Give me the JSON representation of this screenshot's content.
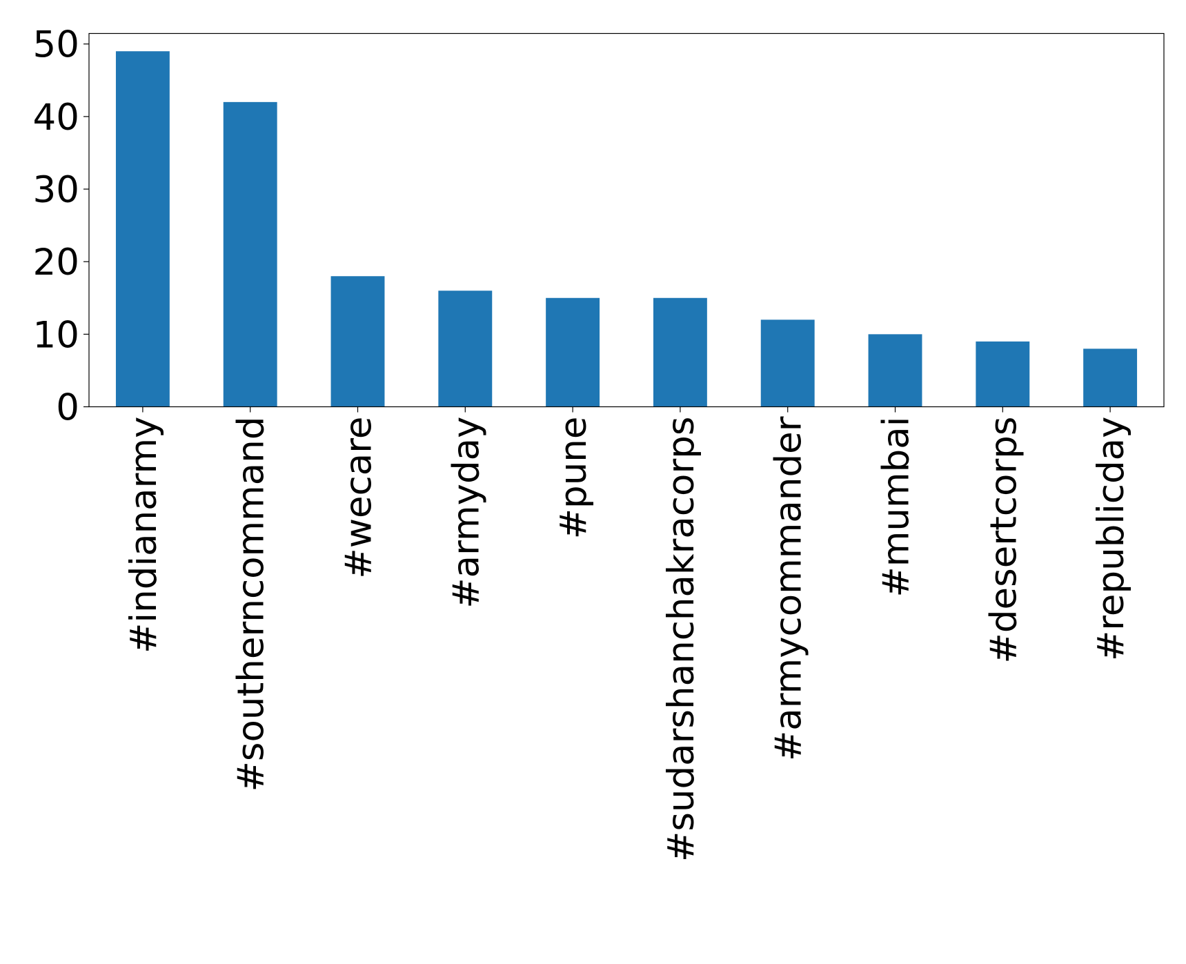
{
  "chart_data": {
    "type": "bar",
    "categories": [
      "#indianarmy",
      "#southerncommand",
      "#wecare",
      "#armyday",
      "#pune",
      "#sudarshanchakracorps",
      "#armycommander",
      "#mumbai",
      "#desertcorps",
      "#republicday"
    ],
    "values": [
      49,
      42,
      18,
      16,
      15,
      15,
      12,
      10,
      9,
      8
    ],
    "color": "#1f77b4",
    "ylim": [
      0,
      51.45
    ],
    "yticks": [
      0,
      10,
      20,
      30,
      40,
      50
    ],
    "grid": false
  }
}
